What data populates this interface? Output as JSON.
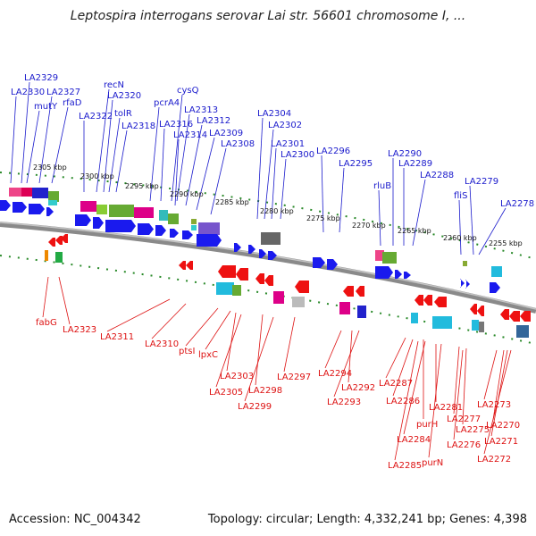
{
  "map": {
    "title": "Leptospira interrogans serovar Lai str. 56601 chromosome I, ...",
    "accession": "Accession: NC_004342",
    "summary": "Topology: circular; Length: 4,332,241 bp; Genes: 4,398"
  },
  "colors": {
    "forward_label": "#1a1acc",
    "reverse_label": "#dd1111",
    "forward_gene": "#1a1aee",
    "reverse_gene": "#ee1111",
    "backbone": "#7d7d7d",
    "tick": "#2a8a2a"
  },
  "ticks": [
    "2305 kbp",
    "2300 kbp",
    "2295 kbp",
    "2290 kbp",
    "2285 kbp",
    "2280 kbp",
    "2275 kbp",
    "2270 kbp",
    "2265 kbp",
    "2260 kbp",
    "2255 kbp"
  ],
  "forward_labels": [
    "LA2329",
    "LA2330",
    "mutY",
    "LA2327",
    "rfaD",
    "recN",
    "LA2320",
    "tolR",
    "LA2322",
    "LA2318",
    "pcrA4",
    "cysQ",
    "LA2313",
    "LA2316",
    "LA2312",
    "LA2314",
    "LA2309",
    "LA2308",
    "LA2304",
    "LA2302",
    "LA2301",
    "LA2300",
    "LA2296",
    "LA2295",
    "LA2290",
    "LA2289",
    "rluB",
    "LA2288",
    "LA2279",
    "fliS",
    "LA2278"
  ],
  "reverse_labels": [
    "fabG",
    "LA2323",
    "LA2311",
    "LA2310",
    "ptsI",
    "lpxC",
    "LA2303",
    "LA2305",
    "LA2298",
    "LA2299",
    "LA2297",
    "LA2294",
    "LA2292",
    "LA2293",
    "LA2287",
    "LA2286",
    "purH",
    "LA2281",
    "LA2277",
    "LA2275",
    "LA2273",
    "LA2270",
    "LA2276",
    "LA2284",
    "LA2271",
    "LA2285",
    "purN",
    "LA2272"
  ]
}
